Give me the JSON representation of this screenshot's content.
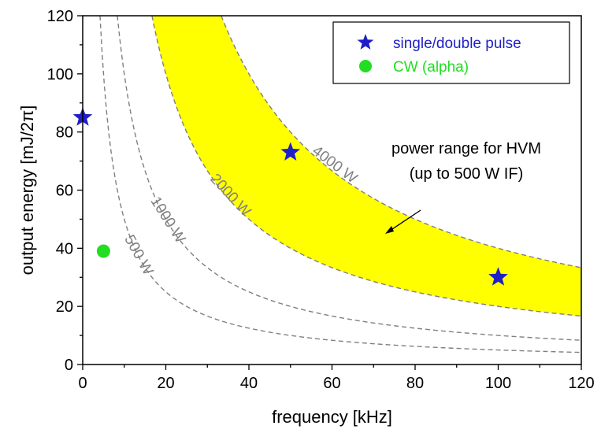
{
  "chart_data": {
    "type": "scatter",
    "xlabel": "frequency [kHz]",
    "ylabel_parts": {
      "prefix": "output energy [mJ/2",
      "symbol": "π",
      "suffix": "]"
    },
    "xlim": [
      0,
      120
    ],
    "ylim": [
      0,
      120
    ],
    "xticks": [
      0,
      20,
      40,
      60,
      80,
      100,
      120
    ],
    "yticks": [
      0,
      20,
      40,
      60,
      80,
      100,
      120
    ],
    "x_minor_step": 10,
    "y_minor_step": 10,
    "grid": false,
    "legend_position": "top-right",
    "series": [
      {
        "name": "single/double pulse",
        "marker": "star",
        "color": "#1f1fc8",
        "points": [
          {
            "x": 0,
            "y": 85
          },
          {
            "x": 50,
            "y": 73
          },
          {
            "x": 100,
            "y": 30
          }
        ]
      },
      {
        "name": "CW (alpha)",
        "marker": "circle",
        "color": "#22dd22",
        "points": [
          {
            "x": 5,
            "y": 39
          }
        ]
      }
    ],
    "constant_power_curves": [
      {
        "label": "500 W",
        "energy_times_frequency": 500
      },
      {
        "label": "1000 W",
        "energy_times_frequency": 1000
      },
      {
        "label": "2000 W",
        "energy_times_frequency": 2000
      },
      {
        "label": "4000 W",
        "energy_times_frequency": 4000
      }
    ],
    "highlight_band": {
      "between_curves": [
        2000,
        4000
      ],
      "color": "#ffff00"
    },
    "annotation": {
      "lines": [
        "power range for HVM",
        "(up to 500 W IF)"
      ]
    }
  }
}
